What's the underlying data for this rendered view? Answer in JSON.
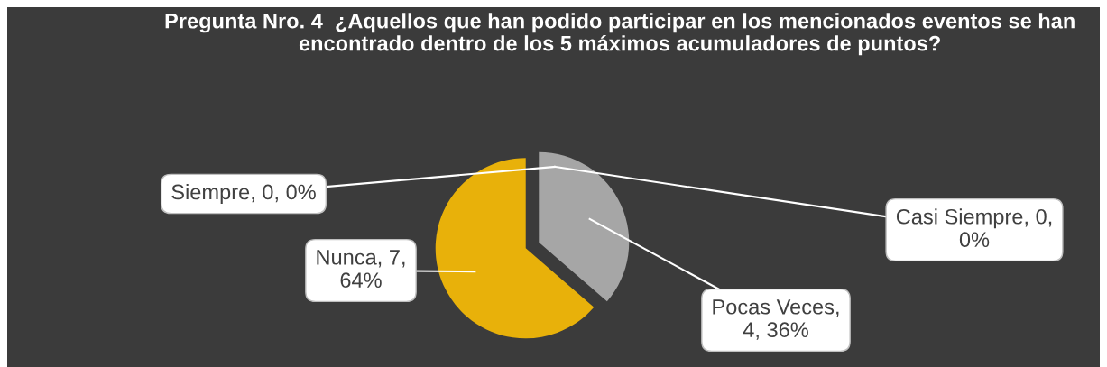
{
  "chart_data": {
    "type": "pie",
    "title": "Pregunta Nro. 4  ¿Aquellos que han podido participar en los mencionados eventos se han encontrado dentro de los 5 máximos acumuladores de puntos?",
    "categories": [
      "Siempre",
      "Casi Siempre",
      "Pocas Veces",
      "Nunca"
    ],
    "values": [
      0,
      0,
      4,
      7
    ],
    "colors": [
      "#4f81bd",
      "#c0504d",
      "#a6a6a6",
      "#e8b10a"
    ],
    "value_labels": [
      ", 0, 0%",
      ", 0,\n0%",
      ",\n4, 36%",
      ", 7,\n64%"
    ],
    "legend": false
  }
}
